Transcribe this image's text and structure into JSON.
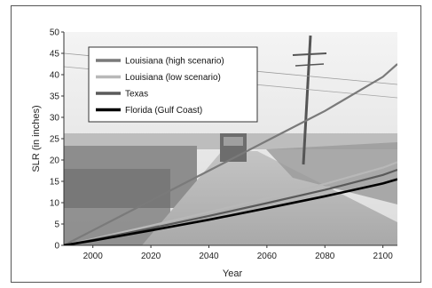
{
  "chart_data": {
    "type": "line",
    "xlabel": "Year",
    "ylabel": "SLR (in inches)",
    "xlim": [
      1990,
      2105
    ],
    "ylim": [
      0,
      50
    ],
    "x_ticks": [
      2000,
      2020,
      2040,
      2060,
      2080,
      2100
    ],
    "y_ticks": [
      0,
      5,
      10,
      15,
      20,
      25,
      30,
      35,
      40,
      45,
      50
    ],
    "grid": false,
    "legend_position": "top-left",
    "background": "photograph of flooded road with utility pole",
    "series": [
      {
        "name": "Louisiana (high scenario)",
        "color": "#7a7a7a",
        "x": [
          1990,
          2000,
          2020,
          2040,
          2060,
          2080,
          2100,
          2105
        ],
        "y": [
          0,
          3.5,
          10.5,
          17.5,
          24.5,
          31.5,
          39.5,
          42.5
        ]
      },
      {
        "name": "Louisiana (low scenario)",
        "color": "#b8b8b8",
        "x": [
          1990,
          2000,
          2020,
          2040,
          2060,
          2080,
          2100,
          2105
        ],
        "y": [
          0,
          1.5,
          4.6,
          7.8,
          11.0,
          14.4,
          18.2,
          19.5
        ]
      },
      {
        "name": "Texas",
        "color": "#5a5a5a",
        "x": [
          1990,
          2000,
          2020,
          2040,
          2060,
          2080,
          2100,
          2105
        ],
        "y": [
          0,
          1.3,
          4.0,
          6.9,
          9.9,
          13.0,
          16.5,
          17.7
        ]
      },
      {
        "name": "Florida (Gulf Coast)",
        "color": "#000000",
        "x": [
          1990,
          2000,
          2020,
          2040,
          2060,
          2080,
          2100,
          2105
        ],
        "y": [
          0,
          1.1,
          3.5,
          6.0,
          8.7,
          11.5,
          14.5,
          15.5
        ]
      }
    ]
  }
}
